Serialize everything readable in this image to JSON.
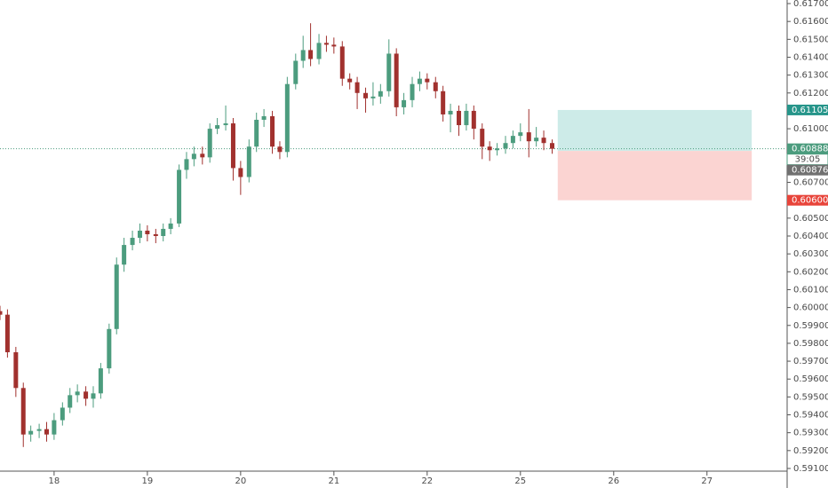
{
  "chart_data": {
    "type": "candlestick",
    "up_color": "#4c9c7e",
    "down_color": "#a1312e",
    "x": [
      -0.58,
      -0.5,
      -0.41,
      -0.33,
      -0.25,
      -0.16,
      -0.08,
      0,
      0.09,
      0.17,
      0.25,
      0.34,
      0.42,
      0.5,
      0.59,
      0.67,
      0.75,
      0.84,
      0.92,
      1,
      1.09,
      1.17,
      1.25,
      1.34,
      1.42,
      1.5,
      1.59,
      1.67,
      1.75,
      1.84,
      1.92,
      2,
      2.09,
      2.17,
      2.25,
      2.34,
      2.42,
      2.5,
      2.59,
      2.67,
      2.75,
      2.84,
      2.92,
      3,
      3.09,
      3.17,
      3.25,
      3.34,
      3.42,
      3.5,
      3.59,
      3.67,
      3.75,
      3.84,
      3.92,
      4,
      4.09,
      4.17,
      4.25,
      4.34,
      4.42,
      4.5,
      4.59,
      4.67,
      4.75,
      4.84,
      4.92,
      5,
      5.09,
      5.17,
      5.25,
      5.34
    ],
    "open": [
      0.5998,
      0.5996,
      0.5975,
      0.5955,
      0.5929,
      0.5931,
      0.5932,
      0.5929,
      0.5937,
      0.5944,
      0.5951,
      0.5953,
      0.5949,
      0.5952,
      0.5966,
      0.5988,
      0.6024,
      0.6035,
      0.6039,
      0.6043,
      0.6041,
      0.604,
      0.6044,
      0.6047,
      0.6077,
      0.6083,
      0.6086,
      0.6084,
      0.61,
      0.6102,
      0.6103,
      0.6078,
      0.6073,
      0.609,
      0.6105,
      0.6107,
      0.609,
      0.6087,
      0.6125,
      0.6138,
      0.6144,
      0.6139,
      0.6148,
      0.6147,
      0.6146,
      0.6128,
      0.6126,
      0.612,
      0.6117,
      0.6118,
      0.6121,
      0.6142,
      0.6112,
      0.6116,
      0.6125,
      0.6128,
      0.6126,
      0.6121,
      0.6108,
      0.611,
      0.6102,
      0.611,
      0.61,
      0.609,
      0.6088,
      0.6089,
      0.6092,
      0.6096,
      0.6098,
      0.6093,
      0.6095,
      0.6092
    ],
    "high": [
      0.6001,
      0.5999,
      0.5978,
      0.5958,
      0.5934,
      0.5935,
      0.5936,
      0.5941,
      0.5947,
      0.5955,
      0.5957,
      0.5956,
      0.5956,
      0.5969,
      0.5991,
      0.6028,
      0.6039,
      0.6043,
      0.6047,
      0.6046,
      0.6044,
      0.6047,
      0.605,
      0.608,
      0.6087,
      0.609,
      0.609,
      0.6103,
      0.6106,
      0.6113,
      0.6106,
      0.6082,
      0.6094,
      0.6109,
      0.6111,
      0.611,
      0.6093,
      0.6129,
      0.6142,
      0.6152,
      0.6159,
      0.6153,
      0.6152,
      0.6151,
      0.6149,
      0.6131,
      0.6129,
      0.6123,
      0.6126,
      0.6125,
      0.615,
      0.6145,
      0.612,
      0.6129,
      0.6132,
      0.6131,
      0.6129,
      0.6124,
      0.6114,
      0.6113,
      0.6114,
      0.6113,
      0.6103,
      0.6093,
      0.6092,
      0.6096,
      0.6099,
      0.6103,
      0.6111,
      0.6101,
      0.6099,
      0.6094
    ],
    "low": [
      0.5993,
      0.5972,
      0.595,
      0.5922,
      0.5925,
      0.5927,
      0.5925,
      0.5926,
      0.5934,
      0.5941,
      0.5947,
      0.5945,
      0.5944,
      0.5949,
      0.5963,
      0.5985,
      0.602,
      0.6032,
      0.6036,
      0.6037,
      0.6036,
      0.6037,
      0.6041,
      0.6045,
      0.6072,
      0.6079,
      0.608,
      0.6081,
      0.6097,
      0.6099,
      0.6071,
      0.6063,
      0.607,
      0.6087,
      0.6101,
      0.6086,
      0.6083,
      0.6084,
      0.6122,
      0.6134,
      0.6135,
      0.6136,
      0.6143,
      0.6142,
      0.6124,
      0.6122,
      0.6111,
      0.6109,
      0.6113,
      0.6114,
      0.6118,
      0.6107,
      0.6108,
      0.6112,
      0.6121,
      0.6122,
      0.6117,
      0.6104,
      0.6098,
      0.6096,
      0.6099,
      0.6094,
      0.6083,
      0.6082,
      0.6085,
      0.6086,
      0.6089,
      0.6093,
      0.6084,
      0.609,
      0.6088,
      0.6086
    ],
    "close": [
      0.5996,
      0.5975,
      0.5955,
      0.5929,
      0.5931,
      0.5932,
      0.5929,
      0.5937,
      0.5944,
      0.5951,
      0.5953,
      0.5949,
      0.5952,
      0.5966,
      0.5988,
      0.6024,
      0.6035,
      0.6039,
      0.6043,
      0.6041,
      0.604,
      0.6044,
      0.6047,
      0.6077,
      0.6083,
      0.6086,
      0.6084,
      0.61,
      0.6102,
      0.6103,
      0.6078,
      0.6073,
      0.609,
      0.6105,
      0.6107,
      0.609,
      0.6087,
      0.6125,
      0.6138,
      0.6144,
      0.6139,
      0.6148,
      0.6147,
      0.6146,
      0.6128,
      0.6126,
      0.612,
      0.6117,
      0.6118,
      0.6121,
      0.6142,
      0.6112,
      0.6116,
      0.6125,
      0.6128,
      0.6126,
      0.6121,
      0.6108,
      0.611,
      0.6102,
      0.611,
      0.61,
      0.609,
      0.6088,
      0.6089,
      0.6092,
      0.6096,
      0.6098,
      0.6093,
      0.6095,
      0.6092,
      0.60888
    ],
    "xlim": [
      -0.58,
      7.85
    ],
    "xticks": [
      {
        "value": 0,
        "label": "18"
      },
      {
        "value": 1,
        "label": "19"
      },
      {
        "value": 2,
        "label": "20"
      },
      {
        "value": 3,
        "label": "21"
      },
      {
        "value": 4,
        "label": "22"
      },
      {
        "value": 5,
        "label": "25"
      },
      {
        "value": 6,
        "label": "26"
      },
      {
        "value": 7,
        "label": "27"
      }
    ],
    "ylim": [
      0.59085,
      0.6172
    ],
    "yticks": [
      {
        "value": 0.617,
        "label": "0.61700"
      },
      {
        "value": 0.616,
        "label": "0.61600"
      },
      {
        "value": 0.615,
        "label": "0.61500"
      },
      {
        "value": 0.614,
        "label": "0.61400"
      },
      {
        "value": 0.613,
        "label": "0.61300"
      },
      {
        "value": 0.612,
        "label": "0.61200"
      },
      {
        "value": 0.61,
        "label": "0.61000"
      },
      {
        "value": 0.607,
        "label": "0.60700"
      },
      {
        "value": 0.605,
        "label": "0.60500"
      },
      {
        "value": 0.604,
        "label": "0.60400"
      },
      {
        "value": 0.603,
        "label": "0.60300"
      },
      {
        "value": 0.602,
        "label": "0.60200"
      },
      {
        "value": 0.601,
        "label": "0.60100"
      },
      {
        "value": 0.6,
        "label": "0.60000"
      },
      {
        "value": 0.599,
        "label": "0.59900"
      },
      {
        "value": 0.598,
        "label": "0.59800"
      },
      {
        "value": 0.597,
        "label": "0.59700"
      },
      {
        "value": 0.596,
        "label": "0.59600"
      },
      {
        "value": 0.595,
        "label": "0.59500"
      },
      {
        "value": 0.594,
        "label": "0.59400"
      },
      {
        "value": 0.593,
        "label": "0.59300"
      },
      {
        "value": 0.592,
        "label": "0.59200"
      },
      {
        "value": 0.591,
        "label": "0.59100"
      }
    ],
    "position": {
      "x_start": 5.4,
      "x_end": 7.48,
      "target": 0.61105,
      "entry": 0.60876,
      "stop": 0.606,
      "target_color": "#cdebe8",
      "stop_color": "#fbd4d2"
    },
    "current_price": {
      "value": 0.60888,
      "label": "0.60888",
      "countdown": "39:05",
      "color": "#4c9c7e"
    },
    "price_labels": [
      {
        "value": 0.61105,
        "label": "0.61105",
        "color": "#26958a"
      },
      {
        "value": 0.60876,
        "label": "0.60876",
        "color": "#707070"
      },
      {
        "value": 0.606,
        "label": "0.60600",
        "color": "#e8443a"
      }
    ]
  }
}
